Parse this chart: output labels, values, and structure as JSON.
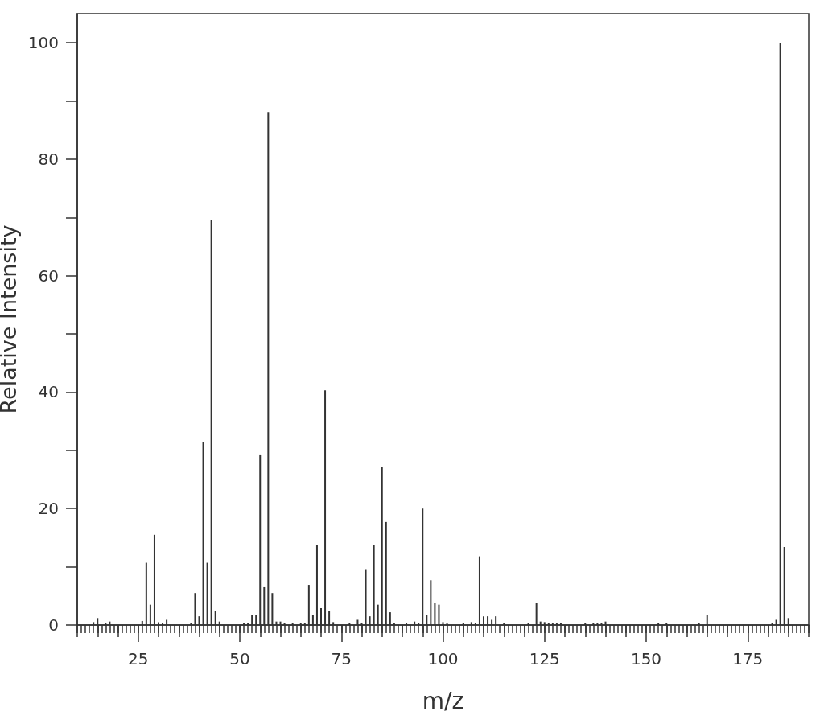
{
  "chart_data": {
    "type": "bar",
    "xlabel": "m/z",
    "ylabel": "Relative Intensity",
    "color": "#333333",
    "x": [
      14,
      15,
      17,
      18,
      26,
      27,
      28,
      29,
      30,
      31,
      32,
      38,
      39,
      40,
      41,
      42,
      43,
      44,
      45,
      51,
      52,
      53,
      54,
      55,
      56,
      57,
      58,
      59,
      60,
      61,
      63,
      65,
      66,
      67,
      68,
      69,
      70,
      71,
      72,
      73,
      77,
      79,
      80,
      81,
      82,
      83,
      84,
      85,
      86,
      87,
      88,
      91,
      93,
      94,
      95,
      96,
      97,
      98,
      99,
      100,
      101,
      105,
      107,
      108,
      109,
      110,
      111,
      112,
      113,
      115,
      121,
      123,
      124,
      125,
      126,
      127,
      128,
      129,
      135,
      137,
      138,
      139,
      140,
      153,
      155,
      163,
      165,
      181,
      182,
      183,
      184,
      185
    ],
    "values": [
      0.5,
      1.2,
      0.4,
      0.6,
      0.7,
      10.7,
      3.5,
      15.5,
      0.5,
      0.4,
      0.9,
      0.4,
      5.5,
      1.5,
      31.5,
      10.7,
      69.5,
      2.4,
      0.6,
      0.3,
      0.3,
      1.8,
      1.8,
      29.3,
      6.5,
      88.1,
      5.5,
      0.6,
      0.6,
      0.4,
      0.4,
      0.4,
      0.4,
      6.9,
      1.7,
      13.8,
      2.9,
      40.3,
      2.4,
      0.5,
      0.3,
      0.9,
      0.4,
      9.6,
      1.5,
      13.8,
      3.5,
      27.1,
      17.7,
      2.2,
      0.4,
      0.4,
      0.6,
      0.4,
      20.0,
      1.8,
      7.7,
      3.8,
      3.5,
      0.5,
      0.3,
      0.3,
      0.5,
      0.4,
      11.8,
      1.5,
      1.5,
      0.9,
      1.5,
      0.4,
      0.4,
      3.8,
      0.6,
      0.5,
      0.4,
      0.4,
      0.4,
      0.4,
      0.3,
      0.4,
      0.4,
      0.4,
      0.6,
      0.4,
      0.4,
      0.4,
      1.7,
      0.4,
      0.9,
      100,
      13.4,
      1.2
    ],
    "xlim": [
      10,
      190
    ],
    "xticks": [
      {
        "value": 10,
        "label": null
      },
      {
        "value": 11,
        "label": null
      },
      {
        "value": 12,
        "label": null
      },
      {
        "value": 13,
        "label": null
      },
      {
        "value": 14,
        "label": null
      },
      {
        "value": 15,
        "label": null
      },
      {
        "value": 16,
        "label": null
      },
      {
        "value": 17,
        "label": null
      },
      {
        "value": 18,
        "label": null
      },
      {
        "value": 19,
        "label": null
      },
      {
        "value": 20,
        "label": null
      },
      {
        "value": 21,
        "label": null
      },
      {
        "value": 22,
        "label": null
      },
      {
        "value": 23,
        "label": null
      },
      {
        "value": 24,
        "label": null
      },
      25,
      {
        "value": 26,
        "label": null
      },
      {
        "value": 27,
        "label": null
      },
      {
        "value": 28,
        "label": null
      },
      {
        "value": 29,
        "label": null
      },
      {
        "value": 30,
        "label": null
      },
      {
        "value": 31,
        "label": null
      },
      {
        "value": 32,
        "label": null
      },
      {
        "value": 33,
        "label": null
      },
      {
        "value": 34,
        "label": null
      },
      {
        "value": 35,
        "label": null
      },
      {
        "value": 36,
        "label": null
      },
      {
        "value": 37,
        "label": null
      },
      {
        "value": 38,
        "label": null
      },
      {
        "value": 39,
        "label": null
      },
      {
        "value": 40,
        "label": null
      },
      {
        "value": 41,
        "label": null
      },
      {
        "value": 42,
        "label": null
      },
      {
        "value": 43,
        "label": null
      },
      {
        "value": 44,
        "label": null
      },
      {
        "value": 45,
        "label": null
      },
      {
        "value": 46,
        "label": null
      },
      {
        "value": 47,
        "label": null
      },
      {
        "value": 48,
        "label": null
      },
      {
        "value": 49,
        "label": null
      },
      50,
      {
        "value": 51,
        "label": null
      },
      {
        "value": 52,
        "label": null
      },
      {
        "value": 53,
        "label": null
      },
      {
        "value": 54,
        "label": null
      },
      {
        "value": 55,
        "label": null
      },
      {
        "value": 56,
        "label": null
      },
      {
        "value": 57,
        "label": null
      },
      {
        "value": 58,
        "label": null
      },
      {
        "value": 59,
        "label": null
      },
      {
        "value": 60,
        "label": null
      },
      {
        "value": 61,
        "label": null
      },
      {
        "value": 62,
        "label": null
      },
      {
        "value": 63,
        "label": null
      },
      {
        "value": 64,
        "label": null
      },
      {
        "value": 65,
        "label": null
      },
      {
        "value": 66,
        "label": null
      },
      {
        "value": 67,
        "label": null
      },
      {
        "value": 68,
        "label": null
      },
      {
        "value": 69,
        "label": null
      },
      {
        "value": 70,
        "label": null
      },
      {
        "value": 71,
        "label": null
      },
      {
        "value": 72,
        "label": null
      },
      {
        "value": 73,
        "label": null
      },
      {
        "value": 74,
        "label": null
      },
      75,
      {
        "value": 76,
        "label": null
      },
      {
        "value": 77,
        "label": null
      },
      {
        "value": 78,
        "label": null
      },
      {
        "value": 79,
        "label": null
      },
      {
        "value": 80,
        "label": null
      },
      {
        "value": 81,
        "label": null
      },
      {
        "value": 82,
        "label": null
      },
      {
        "value": 83,
        "label": null
      },
      {
        "value": 84,
        "label": null
      },
      {
        "value": 85,
        "label": null
      },
      {
        "value": 86,
        "label": null
      },
      {
        "value": 87,
        "label": null
      },
      {
        "value": 88,
        "label": null
      },
      {
        "value": 89,
        "label": null
      },
      {
        "value": 90,
        "label": null
      },
      {
        "value": 91,
        "label": null
      },
      {
        "value": 92,
        "label": null
      },
      {
        "value": 93,
        "label": null
      },
      {
        "value": 94,
        "label": null
      },
      {
        "value": 95,
        "label": null
      },
      {
        "value": 96,
        "label": null
      },
      {
        "value": 97,
        "label": null
      },
      {
        "value": 98,
        "label": null
      },
      {
        "value": 99,
        "label": null
      },
      100,
      {
        "value": 101,
        "label": null
      },
      {
        "value": 102,
        "label": null
      },
      {
        "value": 103,
        "label": null
      },
      {
        "value": 104,
        "label": null
      },
      {
        "value": 105,
        "label": null
      },
      {
        "value": 106,
        "label": null
      },
      {
        "value": 107,
        "label": null
      },
      {
        "value": 108,
        "label": null
      },
      {
        "value": 109,
        "label": null
      },
      {
        "value": 110,
        "label": null
      },
      {
        "value": 111,
        "label": null
      },
      {
        "value": 112,
        "label": null
      },
      {
        "value": 113,
        "label": null
      },
      {
        "value": 114,
        "label": null
      },
      {
        "value": 115,
        "label": null
      },
      {
        "value": 116,
        "label": null
      },
      {
        "value": 117,
        "label": null
      },
      {
        "value": 118,
        "label": null
      },
      {
        "value": 119,
        "label": null
      },
      {
        "value": 120,
        "label": null
      },
      {
        "value": 121,
        "label": null
      },
      {
        "value": 122,
        "label": null
      },
      {
        "value": 123,
        "label": null
      },
      {
        "value": 124,
        "label": null
      },
      125,
      {
        "value": 126,
        "label": null
      },
      {
        "value": 127,
        "label": null
      },
      {
        "value": 128,
        "label": null
      },
      {
        "value": 129,
        "label": null
      },
      {
        "value": 130,
        "label": null
      },
      {
        "value": 131,
        "label": null
      },
      {
        "value": 132,
        "label": null
      },
      {
        "value": 133,
        "label": null
      },
      {
        "value": 134,
        "label": null
      },
      {
        "value": 135,
        "label": null
      },
      {
        "value": 136,
        "label": null
      },
      {
        "value": 137,
        "label": null
      },
      {
        "value": 138,
        "label": null
      },
      {
        "value": 139,
        "label": null
      },
      {
        "value": 140,
        "label": null
      },
      {
        "value": 141,
        "label": null
      },
      {
        "value": 142,
        "label": null
      },
      {
        "value": 143,
        "label": null
      },
      {
        "value": 144,
        "label": null
      },
      {
        "value": 145,
        "label": null
      },
      {
        "value": 146,
        "label": null
      },
      {
        "value": 147,
        "label": null
      },
      {
        "value": 148,
        "label": null
      },
      {
        "value": 149,
        "label": null
      },
      150,
      {
        "value": 151,
        "label": null
      },
      {
        "value": 152,
        "label": null
      },
      {
        "value": 153,
        "label": null
      },
      {
        "value": 154,
        "label": null
      },
      {
        "value": 155,
        "label": null
      },
      {
        "value": 156,
        "label": null
      },
      {
        "value": 157,
        "label": null
      },
      {
        "value": 158,
        "label": null
      },
      {
        "value": 159,
        "label": null
      },
      {
        "value": 160,
        "label": null
      },
      {
        "value": 161,
        "label": null
      },
      {
        "value": 162,
        "label": null
      },
      {
        "value": 163,
        "label": null
      },
      {
        "value": 164,
        "label": null
      },
      {
        "value": 165,
        "label": null
      },
      {
        "value": 166,
        "label": null
      },
      {
        "value": 167,
        "label": null
      },
      {
        "value": 168,
        "label": null
      },
      {
        "value": 169,
        "label": null
      },
      {
        "value": 170,
        "label": null
      },
      {
        "value": 171,
        "label": null
      },
      {
        "value": 172,
        "label": null
      },
      {
        "value": 173,
        "label": null
      },
      {
        "value": 174,
        "label": null
      },
      175,
      {
        "value": 176,
        "label": null
      },
      {
        "value": 177,
        "label": null
      },
      {
        "value": 178,
        "label": null
      },
      {
        "value": 179,
        "label": null
      },
      {
        "value": 180,
        "label": null
      },
      {
        "value": 181,
        "label": null
      },
      {
        "value": 182,
        "label": null
      },
      {
        "value": 183,
        "label": null
      },
      {
        "value": 184,
        "label": null
      },
      {
        "value": 185,
        "label": null
      },
      {
        "value": 186,
        "label": null
      },
      {
        "value": 187,
        "label": null
      },
      {
        "value": 188,
        "label": null
      },
      {
        "value": 189,
        "label": null
      },
      {
        "value": 190,
        "label": null
      }
    ],
    "ylim": [
      0,
      105
    ],
    "yticks": [
      0,
      {
        "value": 10,
        "label": null
      },
      20,
      {
        "value": 30,
        "label": null
      },
      40,
      {
        "value": 50,
        "label": null
      },
      60,
      {
        "value": 70,
        "label": null
      },
      80,
      {
        "value": 90,
        "label": null
      },
      100
    ]
  }
}
